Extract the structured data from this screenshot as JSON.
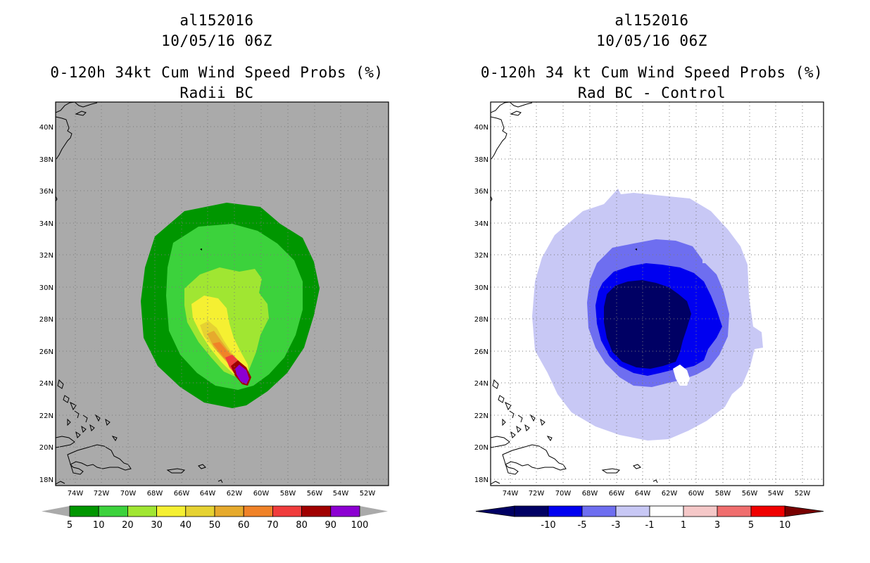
{
  "left_panel": {
    "storm_id": "al152016",
    "datetime": "10/05/16 06Z",
    "product": "0-120h 34kt Cum Wind Speed Probs (%)",
    "subtitle": "Radii BC",
    "colorbar": {
      "labels": [
        "5",
        "10",
        "20",
        "30",
        "40",
        "50",
        "60",
        "70",
        "80",
        "90",
        "100"
      ],
      "colors": [
        "#009600",
        "#3cd23c",
        "#a0e632",
        "#f5f032",
        "#e6d232",
        "#e6aa2d",
        "#f08228",
        "#f03c3c",
        "#a00000",
        "#8c00d2"
      ],
      "extend_color": "#aaaaaa"
    }
  },
  "right_panel": {
    "storm_id": "al152016",
    "datetime": "10/05/16 06Z",
    "product": "0-120h 34 kt Cum Wind Speed Probs (%)",
    "subtitle": "Rad BC - Control",
    "colorbar": {
      "labels": [
        "-10",
        "-5",
        "-3",
        "-1",
        "1",
        "3",
        "5",
        "10"
      ],
      "colors": [
        "#000064",
        "#0000f0",
        "#6e6ef0",
        "#c8c8f5",
        "#ffffff",
        "#f5c8c8",
        "#f06e6e",
        "#f00000"
      ],
      "low_extend_color": "#000064",
      "high_extend_color": "#780000"
    }
  },
  "map_axes": {
    "lat_labels": [
      "40N",
      "38N",
      "36N",
      "34N",
      "32N",
      "30N",
      "28N",
      "26N",
      "24N",
      "22N",
      "20N",
      "18N"
    ],
    "lon_labels": [
      "74W",
      "72W",
      "70W",
      "68W",
      "66W",
      "64W",
      "62W",
      "60W",
      "58W",
      "56W",
      "54W",
      "52W"
    ]
  },
  "colors": {
    "land_mask_gray": "#aaaaaa",
    "background": "#ffffff"
  }
}
